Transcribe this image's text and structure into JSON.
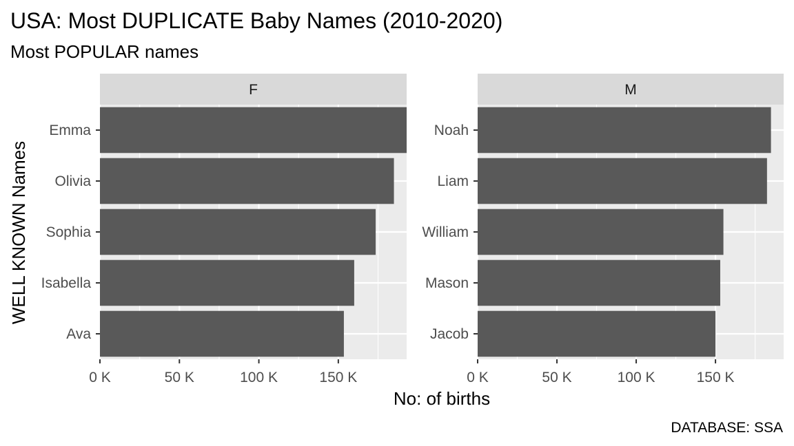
{
  "chart_data": {
    "type": "bar",
    "orientation": "horizontal",
    "title": "USA: Most DUPLICATE Baby Names (2010-2020)",
    "subtitle": "Most POPULAR names",
    "xlabel": "No: of births",
    "ylabel": "WELL KNOWN Names",
    "caption": "DATABASE: SSA",
    "xlim": [
      0,
      193000
    ],
    "x_ticks": [
      0,
      50000,
      100000,
      150000
    ],
    "x_tick_labels": [
      "0 K",
      "50 K",
      "100 K",
      "150 K"
    ],
    "grid": true,
    "facets": [
      {
        "label": "F",
        "categories": [
          "Emma",
          "Olivia",
          "Sophia",
          "Isabella",
          "Ava"
        ],
        "values": [
          193000,
          185000,
          173500,
          160000,
          153500
        ]
      },
      {
        "label": "M",
        "categories": [
          "Noah",
          "Liam",
          "William",
          "Mason",
          "Jacob"
        ],
        "values": [
          185000,
          182500,
          155000,
          153000,
          150000
        ]
      }
    ],
    "colors": {
      "bar": "#595959",
      "panel_bg": "#ebebeb",
      "strip_bg": "#d9d9d9",
      "grid_major": "#ffffff",
      "tick": "#333333"
    }
  }
}
